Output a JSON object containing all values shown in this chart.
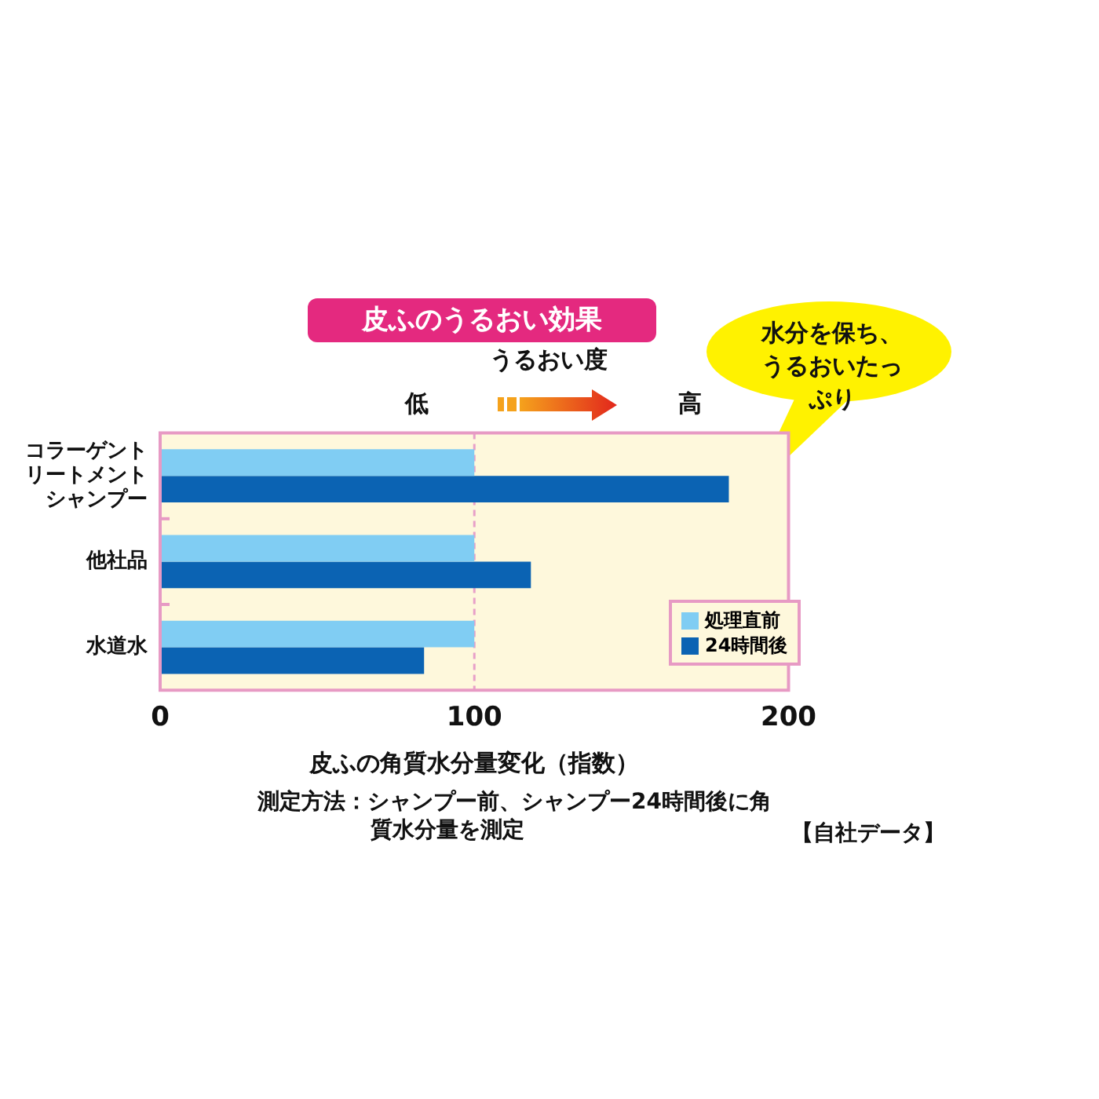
{
  "chart_data": {
    "type": "bar",
    "orientation": "horizontal",
    "title": "皮ふのうるおい効果",
    "xlabel": "皮ふの角質水分量変化（指数）",
    "categories": [
      "コラーゲントリートメントシャンプー",
      "他社品",
      "水道水"
    ],
    "series": [
      {
        "name": "処理直前",
        "color": "#80cdf3",
        "values": [
          100,
          100,
          100
        ]
      },
      {
        "name": "24時間後",
        "color": "#0b63b3",
        "values": [
          181,
          118,
          84
        ]
      }
    ],
    "xlim": [
      0,
      200
    ],
    "xticks": [
      0,
      100,
      200
    ],
    "legend": "bottom right",
    "ref_lines": [
      {
        "axis": "x",
        "value": 100,
        "color": "#e8a0c8",
        "line_style": "dashed"
      }
    ],
    "annotations": [
      "うるおい度",
      "低",
      "高",
      "水分を保ち、うるおいたっぷり",
      "測定方法：シャンプー前、シャンプー24時間後に角質水分量を測定",
      "【自社データ】"
    ]
  }
}
